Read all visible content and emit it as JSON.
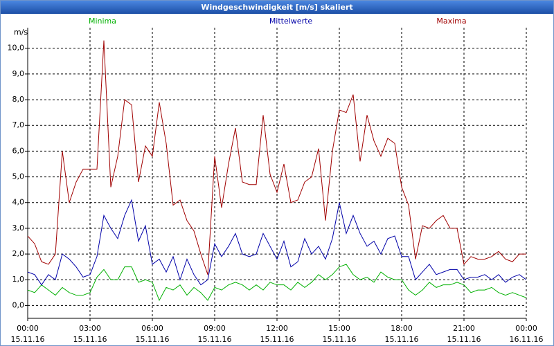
{
  "chart_data": {
    "type": "line",
    "title": "Windgeschwindigkeit [m/s] skaliert",
    "y_label": "m/s",
    "x": [
      0,
      20,
      40,
      60,
      80,
      100,
      120,
      140,
      160,
      180,
      200,
      220,
      240,
      260,
      280,
      300,
      320,
      340,
      360,
      380,
      400,
      420,
      440,
      460,
      480,
      500,
      520,
      540,
      560,
      580,
      600,
      620,
      640,
      660,
      680,
      700,
      720,
      740,
      760,
      780,
      800,
      820,
      840,
      860,
      880,
      900,
      920,
      940,
      960,
      980,
      1000,
      1020,
      1040,
      1060,
      1080,
      1100,
      1120,
      1140,
      1160,
      1180,
      1200,
      1220,
      1240,
      1260,
      1280,
      1300,
      1320,
      1340,
      1360,
      1380,
      1400,
      1420,
      1440
    ],
    "xlim": [
      0,
      1440
    ],
    "xticks": [
      {
        "value": 0,
        "label": "00:00",
        "date": "15.11.16"
      },
      {
        "value": 180,
        "label": "03:00",
        "date": "15.11.16"
      },
      {
        "value": 360,
        "label": "06:00",
        "date": "15.11.16"
      },
      {
        "value": 540,
        "label": "09:00",
        "date": "15.11.16"
      },
      {
        "value": 720,
        "label": "12:00",
        "date": "15.11.16"
      },
      {
        "value": 900,
        "label": "15:00",
        "date": "15.11.16"
      },
      {
        "value": 1080,
        "label": "18:00",
        "date": "15.11.16"
      },
      {
        "value": 1260,
        "label": "21:00",
        "date": "15.11.16"
      },
      {
        "value": 1440,
        "label": "00:00",
        "date": "16.11.16"
      }
    ],
    "ylim": [
      -0.5,
      10.8
    ],
    "yticks": [
      {
        "value": 0,
        "label": "0,0"
      },
      {
        "value": 1,
        "label": "1,0"
      },
      {
        "value": 2,
        "label": "2,0"
      },
      {
        "value": 3,
        "label": "3,0"
      },
      {
        "value": 4,
        "label": "4,0"
      },
      {
        "value": 5,
        "label": "5,0"
      },
      {
        "value": 6,
        "label": "6,0"
      },
      {
        "value": 7,
        "label": "7,0"
      },
      {
        "value": 8,
        "label": "8,0"
      },
      {
        "value": 9,
        "label": "9,0"
      },
      {
        "value": 10,
        "label": "10,0"
      }
    ],
    "grid": true,
    "series": [
      {
        "name": "Minima",
        "color": "#00b000",
        "values": [
          0.6,
          0.5,
          0.8,
          0.6,
          0.4,
          0.7,
          0.5,
          0.4,
          0.4,
          0.5,
          1.1,
          1.4,
          1.0,
          1.0,
          1.5,
          1.5,
          0.9,
          1.0,
          0.9,
          0.2,
          0.7,
          0.6,
          0.8,
          0.4,
          0.7,
          0.5,
          0.2,
          0.7,
          0.6,
          0.8,
          0.9,
          0.8,
          0.6,
          0.8,
          0.6,
          0.9,
          0.8,
          0.8,
          0.6,
          0.9,
          0.7,
          0.9,
          1.2,
          1.0,
          1.2,
          1.5,
          1.6,
          1.2,
          1.0,
          1.1,
          0.9,
          1.3,
          1.1,
          1.0,
          1.0,
          0.6,
          0.4,
          0.6,
          0.9,
          0.7,
          0.8,
          0.8,
          0.9,
          0.8,
          0.5,
          0.6,
          0.6,
          0.7,
          0.5,
          0.4,
          0.5,
          0.4,
          0.3
        ]
      },
      {
        "name": "Mittelwerte",
        "color": "#0000a8",
        "values": [
          1.3,
          1.2,
          0.8,
          1.2,
          1.0,
          2.0,
          1.8,
          1.5,
          1.1,
          1.2,
          1.9,
          3.5,
          3.0,
          2.6,
          3.5,
          4.1,
          2.5,
          3.1,
          1.6,
          1.8,
          1.3,
          1.9,
          1.0,
          1.8,
          1.2,
          0.8,
          1.0,
          2.4,
          1.9,
          2.3,
          2.8,
          2.0,
          1.9,
          2.0,
          2.8,
          2.3,
          1.8,
          2.5,
          1.5,
          1.7,
          2.6,
          2.0,
          2.3,
          1.8,
          2.6,
          4.0,
          2.8,
          3.5,
          2.8,
          2.3,
          2.5,
          2.0,
          2.6,
          2.7,
          1.9,
          1.9,
          1.0,
          1.3,
          1.6,
          1.2,
          1.3,
          1.4,
          1.4,
          1.0,
          1.1,
          1.1,
          1.2,
          1.0,
          1.2,
          0.9,
          1.1,
          1.2,
          1.0
        ]
      },
      {
        "name": "Maxima",
        "color": "#a00000",
        "values": [
          2.7,
          2.4,
          1.7,
          1.6,
          2.0,
          6.0,
          4.0,
          4.8,
          5.3,
          5.3,
          5.3,
          10.3,
          4.6,
          5.8,
          8.0,
          7.8,
          4.8,
          6.2,
          5.8,
          7.9,
          6.3,
          3.9,
          4.1,
          3.3,
          2.9,
          2.0,
          1.2,
          5.8,
          3.8,
          5.5,
          6.9,
          4.8,
          4.7,
          4.7,
          7.4,
          5.1,
          4.4,
          5.5,
          4.0,
          4.1,
          4.8,
          5.0,
          6.1,
          3.3,
          6.0,
          7.6,
          7.5,
          8.2,
          5.6,
          7.4,
          6.4,
          5.8,
          6.5,
          6.3,
          4.6,
          3.9,
          1.8,
          3.1,
          3.0,
          3.3,
          3.5,
          3.0,
          3.0,
          1.6,
          1.9,
          1.8,
          1.8,
          1.9,
          2.1,
          1.8,
          1.7,
          2.0,
          2.0
        ]
      }
    ]
  }
}
